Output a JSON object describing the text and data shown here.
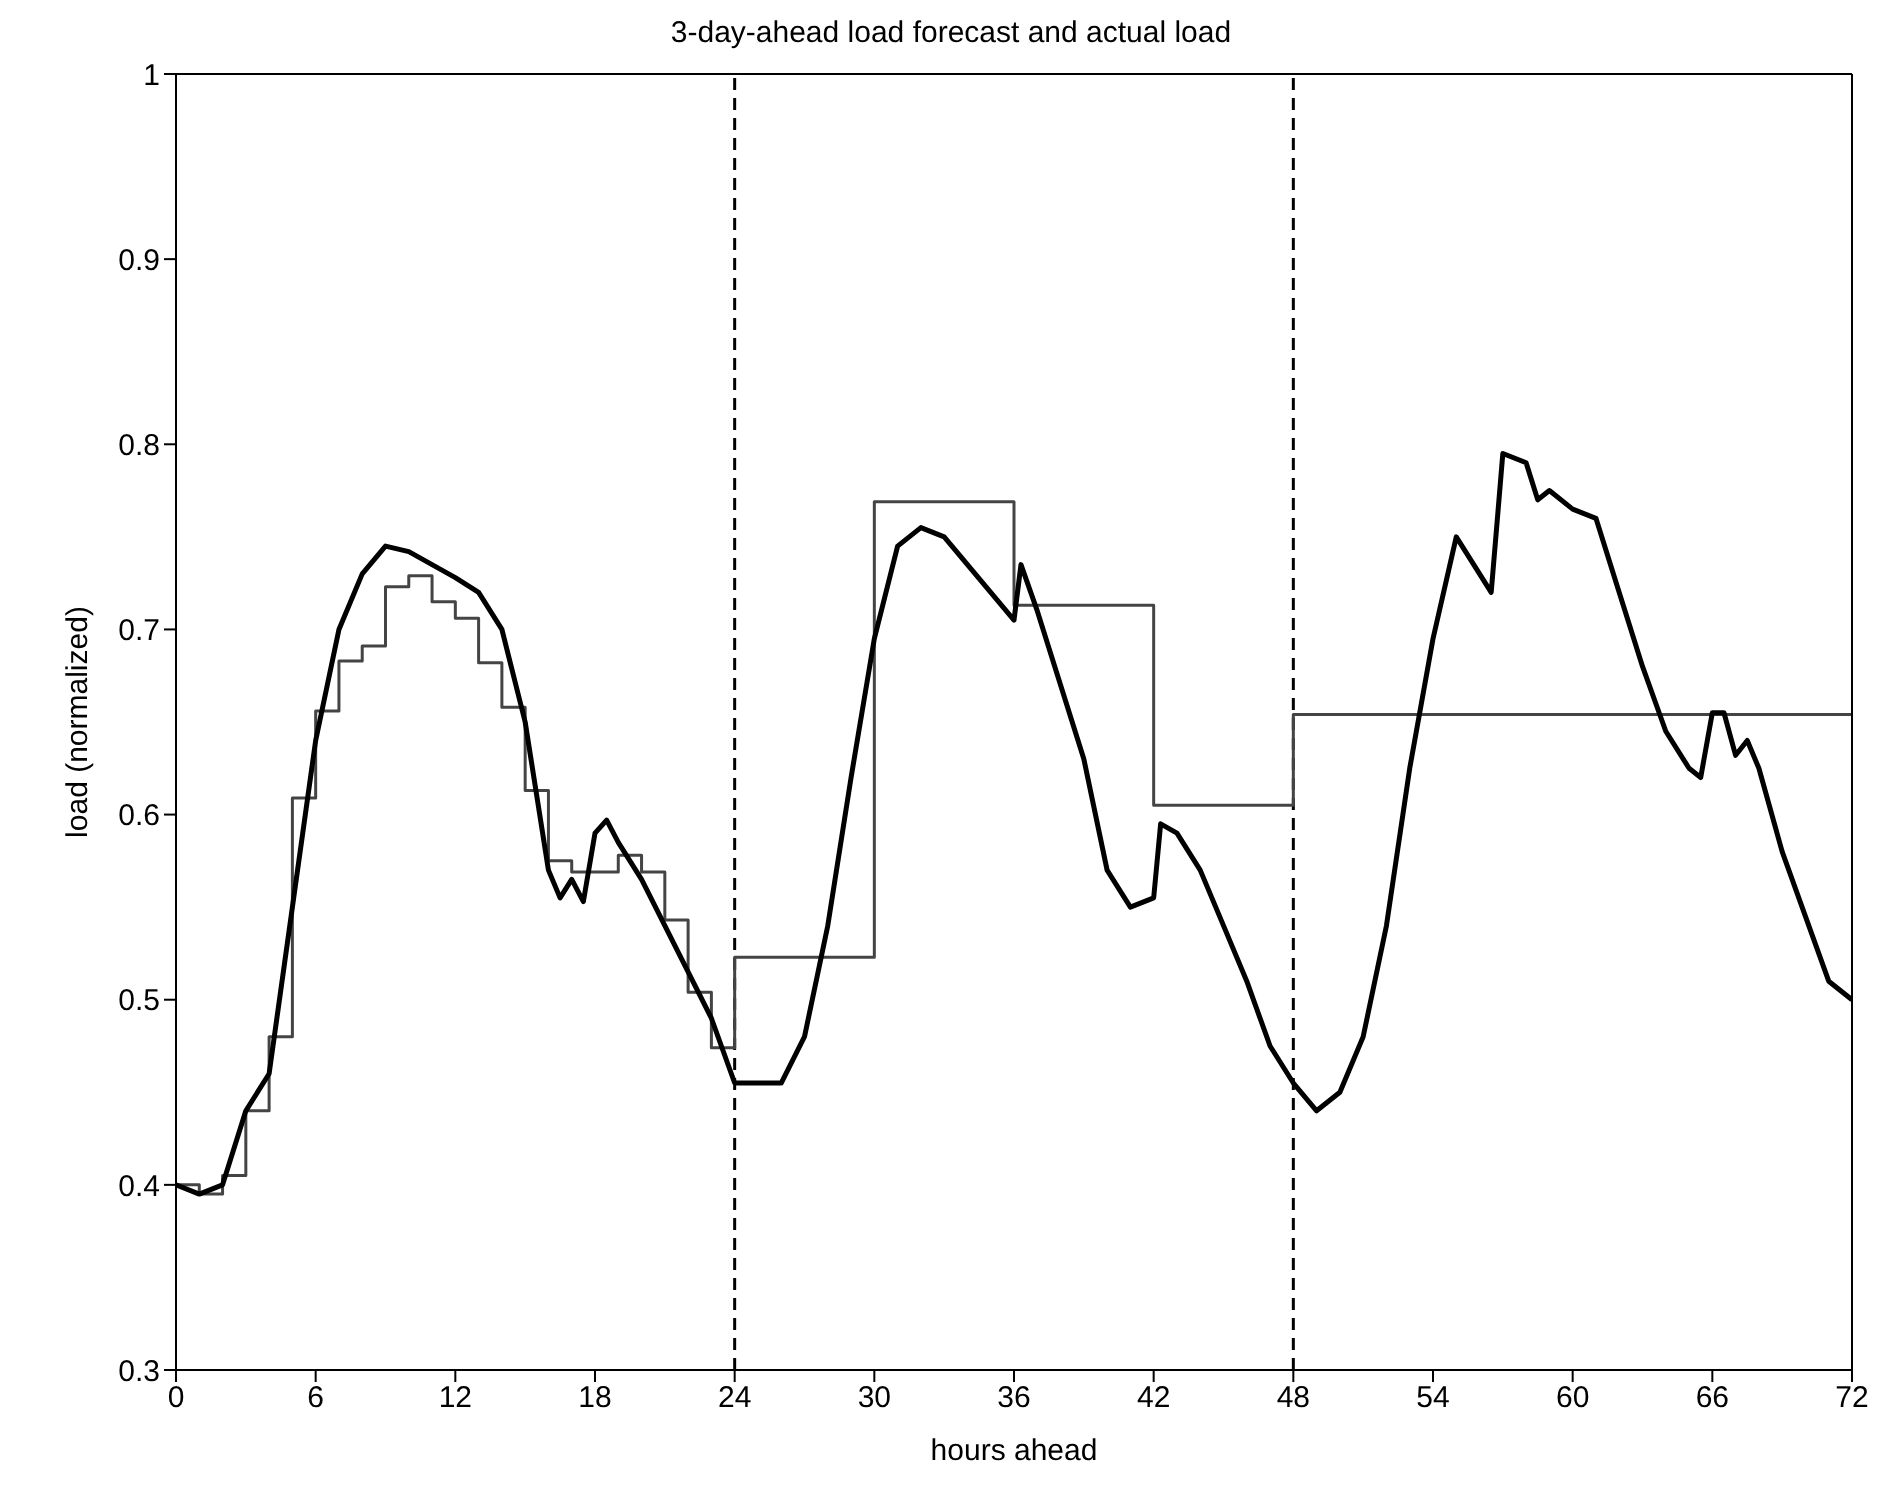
{
  "chart_data": {
    "type": "line",
    "title": "3-day-ahead load forecast and actual load",
    "xlabel": "hours ahead",
    "ylabel": "load (normalized)",
    "xlim": [
      0,
      72
    ],
    "xticks": [
      0,
      6,
      12,
      18,
      24,
      30,
      36,
      42,
      48,
      54,
      60,
      66,
      72
    ],
    "ylim": [
      0.3,
      1
    ],
    "yticks": [
      0.3,
      0.4,
      0.5,
      0.6,
      0.7,
      0.8,
      0.9,
      1
    ],
    "ref_lines": [
      {
        "axis": "x",
        "value": 24,
        "line_style": "dashed",
        "color": "#000000"
      },
      {
        "axis": "x",
        "value": 48,
        "line_style": "dashed",
        "color": "#000000"
      }
    ],
    "series": [
      {
        "type": "step",
        "color": "#444444",
        "x": [
          0,
          1,
          2,
          3,
          4,
          5,
          6,
          7,
          8,
          9,
          10,
          11,
          12,
          13,
          14,
          15,
          16,
          17,
          18,
          19,
          20,
          21,
          22,
          23,
          24,
          30,
          36,
          42,
          48,
          72
        ],
        "values": [
          0.4,
          0.395,
          0.405,
          0.44,
          0.48,
          0.609,
          0.656,
          0.683,
          0.691,
          0.723,
          0.729,
          0.715,
          0.706,
          0.682,
          0.658,
          0.613,
          0.575,
          0.569,
          0.569,
          0.578,
          0.569,
          0.543,
          0.504,
          0.474,
          0.523,
          0.769,
          0.713,
          0.605,
          0.654,
          0.654
        ]
      },
      {
        "type": "line",
        "color": "#000000",
        "x": [
          0,
          1,
          2,
          3,
          4,
          5,
          6,
          7,
          8,
          9,
          10,
          11,
          12,
          13,
          14,
          15,
          16,
          16.5,
          17,
          17.5,
          18,
          18.5,
          19,
          20,
          21,
          22,
          23,
          24,
          25,
          26,
          27,
          28,
          29,
          30,
          31,
          32,
          33,
          34,
          35,
          36,
          36.3,
          37,
          38,
          39,
          40,
          41,
          42,
          42.3,
          43,
          44,
          45,
          46,
          47,
          48,
          49,
          50,
          51,
          52,
          53,
          54,
          55,
          56,
          56.5,
          57,
          58,
          58.5,
          59,
          60,
          61,
          62,
          63,
          64,
          65,
          65.5,
          66,
          66.5,
          67,
          67.5,
          68,
          69,
          70,
          71,
          72
        ],
        "values": [
          0.4,
          0.395,
          0.4,
          0.44,
          0.46,
          0.55,
          0.64,
          0.7,
          0.73,
          0.745,
          0.742,
          0.735,
          0.728,
          0.72,
          0.7,
          0.65,
          0.57,
          0.555,
          0.565,
          0.553,
          0.59,
          0.597,
          0.585,
          0.565,
          0.54,
          0.515,
          0.49,
          0.455,
          0.455,
          0.455,
          0.48,
          0.54,
          0.62,
          0.695,
          0.745,
          0.755,
          0.75,
          0.735,
          0.72,
          0.705,
          0.735,
          0.71,
          0.67,
          0.63,
          0.57,
          0.55,
          0.555,
          0.595,
          0.59,
          0.57,
          0.54,
          0.51,
          0.475,
          0.455,
          0.44,
          0.45,
          0.48,
          0.54,
          0.625,
          0.695,
          0.75,
          0.73,
          0.72,
          0.795,
          0.79,
          0.77,
          0.775,
          0.765,
          0.76,
          0.72,
          0.68,
          0.645,
          0.625,
          0.62,
          0.655,
          0.655,
          0.632,
          0.64,
          0.625,
          0.58,
          0.545,
          0.51,
          0.5
        ]
      }
    ]
  }
}
